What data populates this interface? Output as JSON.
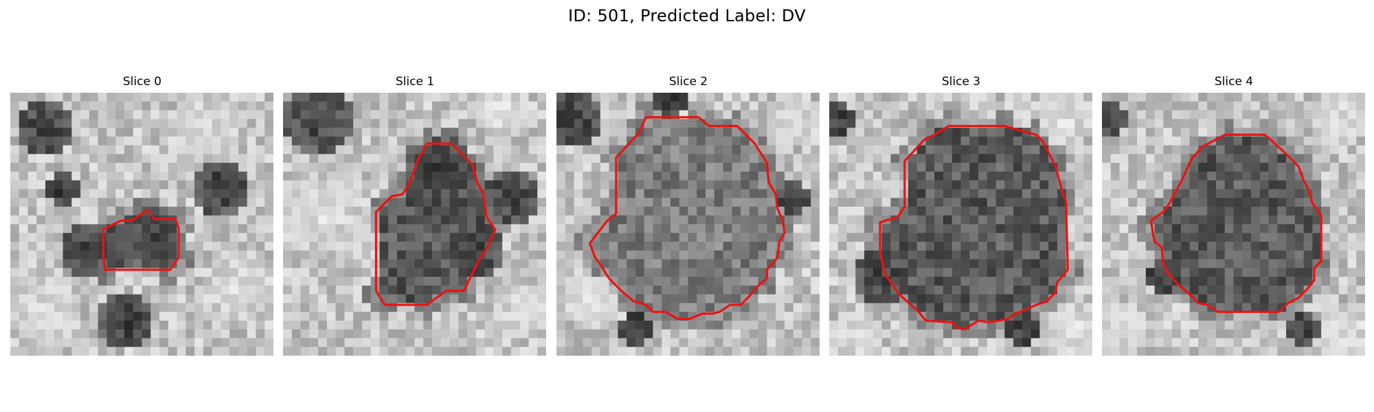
{
  "figure": {
    "title": "ID: 501, Predicted Label: DV"
  },
  "panels": [
    {
      "title": "Slice 0",
      "seed": 11,
      "contour_shape": "small-irregular"
    },
    {
      "title": "Slice 1",
      "seed": 23,
      "contour_shape": "tall-irregular"
    },
    {
      "title": "Slice 2",
      "seed": 37,
      "contour_shape": "large-irregular"
    },
    {
      "title": "Slice 3",
      "seed": 41,
      "contour_shape": "large-round"
    },
    {
      "title": "Slice 4",
      "seed": 53,
      "contour_shape": "octagon-round"
    }
  ],
  "colors": {
    "contour": "#ee1111",
    "image_grayscale_dark": "#141414",
    "image_grayscale_light": "#f5f5f5",
    "background": "#ffffff"
  }
}
